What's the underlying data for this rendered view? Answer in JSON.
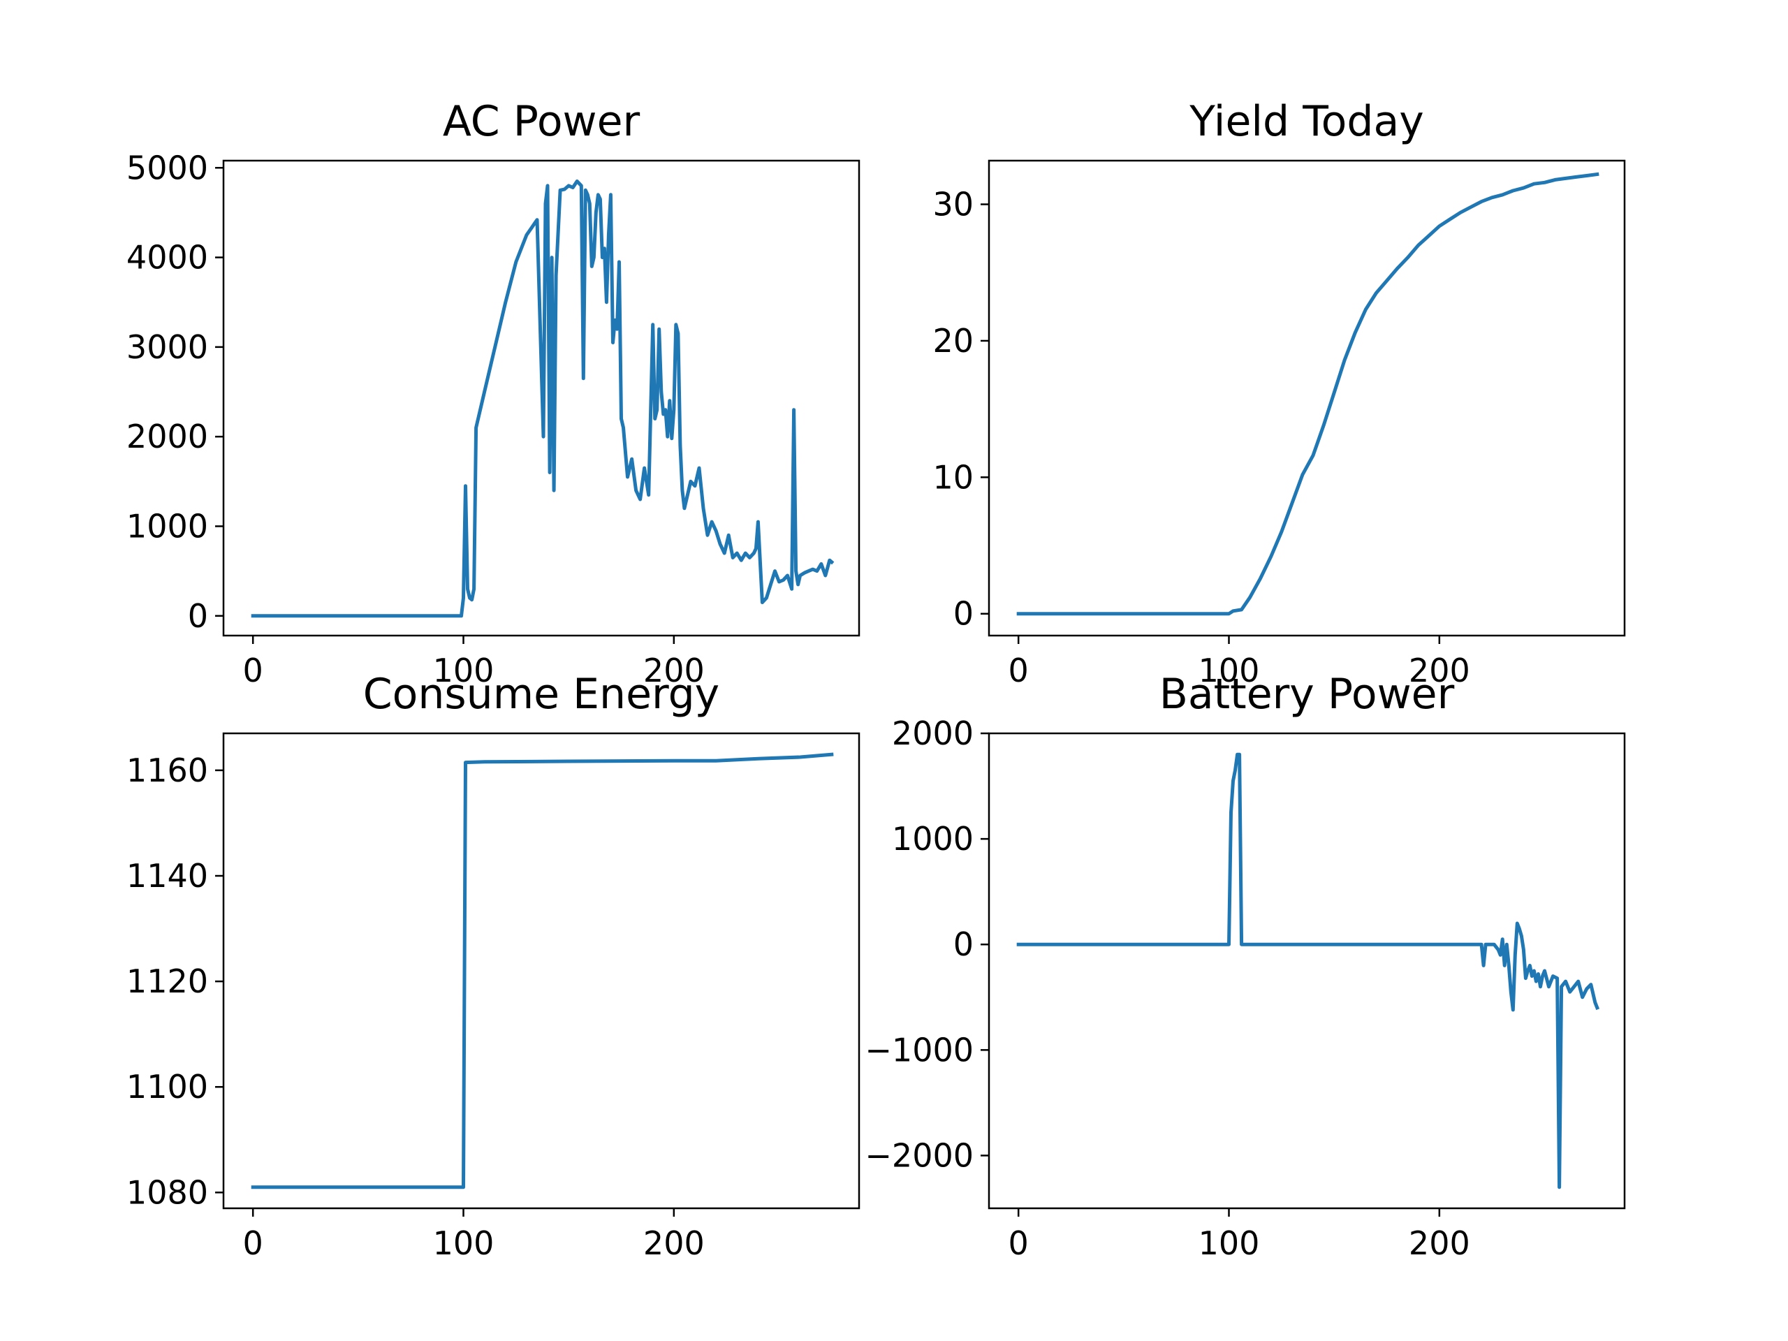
{
  "chart_data": [
    {
      "type": "line",
      "title": "AC Power",
      "xlabel": "",
      "ylabel": "",
      "xlim": [
        -14,
        288
      ],
      "ylim": [
        -220,
        5080
      ],
      "xticks": [
        0,
        100,
        200
      ],
      "yticks": [
        0,
        1000,
        2000,
        3000,
        4000,
        5000
      ],
      "xtick_labels": [
        "0",
        "100",
        "200"
      ],
      "ytick_labels": [
        "0",
        "1000",
        "2000",
        "3000",
        "4000",
        "5000"
      ],
      "grid": false,
      "color": "#1f77b4",
      "series": [
        {
          "x": [
            0,
            99,
            100,
            101,
            102,
            103,
            104,
            105,
            106,
            110,
            115,
            120,
            125,
            130,
            135,
            138,
            139,
            140,
            141,
            142,
            143,
            144,
            146,
            148,
            150,
            152,
            154,
            156,
            157,
            158,
            159,
            160,
            161,
            162,
            163,
            164,
            165,
            166,
            167,
            168,
            169,
            170,
            171,
            172,
            173,
            174,
            175,
            176,
            178,
            180,
            182,
            184,
            186,
            188,
            190,
            191,
            192,
            193,
            194,
            195,
            196,
            197,
            198,
            199,
            200,
            201,
            202,
            203,
            204,
            205,
            206,
            208,
            210,
            212,
            214,
            216,
            218,
            220,
            222,
            224,
            226,
            228,
            230,
            232,
            234,
            236,
            238,
            239,
            240,
            241,
            242,
            244,
            246,
            248,
            250,
            252,
            254,
            256,
            257,
            258,
            259,
            260,
            262,
            264,
            266,
            268,
            270,
            272,
            274,
            275
          ],
          "y": [
            0,
            0,
            200,
            1450,
            300,
            200,
            180,
            300,
            2100,
            2500,
            3000,
            3500,
            3950,
            4250,
            4420,
            2000,
            4600,
            4800,
            1600,
            4000,
            1400,
            3800,
            4750,
            4760,
            4800,
            4780,
            4850,
            4800,
            2650,
            4750,
            4700,
            4600,
            3900,
            4000,
            4500,
            4700,
            4650,
            4000,
            4100,
            3500,
            4250,
            4700,
            3050,
            3300,
            3200,
            3950,
            2200,
            2100,
            1550,
            1750,
            1400,
            1300,
            1650,
            1350,
            3250,
            2200,
            2300,
            3200,
            2500,
            2250,
            2300,
            2000,
            2400,
            1980,
            2300,
            3250,
            3150,
            1900,
            1400,
            1200,
            1300,
            1500,
            1450,
            1650,
            1200,
            900,
            1050,
            950,
            800,
            700,
            900,
            650,
            700,
            620,
            700,
            650,
            700,
            750,
            1050,
            600,
            150,
            200,
            350,
            500,
            380,
            400,
            450,
            300,
            2300,
            500,
            350,
            450,
            480,
            500,
            520,
            500,
            580,
            450,
            620,
            600
          ]
        }
      ]
    },
    {
      "type": "line",
      "title": "Yield Today",
      "xlabel": "",
      "ylabel": "",
      "xlim": [
        -14,
        288
      ],
      "ylim": [
        -1.6,
        33.2
      ],
      "xticks": [
        0,
        100,
        200
      ],
      "yticks": [
        0,
        10,
        20,
        30
      ],
      "xtick_labels": [
        "0",
        "100",
        "200"
      ],
      "ytick_labels": [
        "0",
        "10",
        "20",
        "30"
      ],
      "grid": false,
      "color": "#1f77b4",
      "series": [
        {
          "x": [
            0,
            100,
            102,
            106,
            110,
            115,
            120,
            125,
            130,
            135,
            140,
            145,
            150,
            155,
            160,
            165,
            170,
            175,
            180,
            185,
            190,
            195,
            200,
            205,
            210,
            215,
            220,
            225,
            230,
            235,
            240,
            245,
            250,
            255,
            260,
            265,
            270,
            275
          ],
          "y": [
            0,
            0,
            0.2,
            0.3,
            1.2,
            2.6,
            4.2,
            6.0,
            8.1,
            10.2,
            11.6,
            13.8,
            16.2,
            18.6,
            20.6,
            22.3,
            23.5,
            24.4,
            25.3,
            26.1,
            27.0,
            27.7,
            28.4,
            28.9,
            29.4,
            29.8,
            30.2,
            30.5,
            30.7,
            31.0,
            31.2,
            31.5,
            31.6,
            31.8,
            31.9,
            32.0,
            32.1,
            32.2
          ]
        }
      ]
    },
    {
      "type": "line",
      "title": "Consume Energy",
      "xlabel": "",
      "ylabel": "",
      "xlim": [
        -14,
        288
      ],
      "ylim": [
        1077,
        1167
      ],
      "xticks": [
        0,
        100,
        200
      ],
      "yticks": [
        1080,
        1100,
        1120,
        1140,
        1160
      ],
      "xtick_labels": [
        "0",
        "100",
        "200"
      ],
      "ytick_labels": [
        "1080",
        "1100",
        "1120",
        "1140",
        "1160"
      ],
      "grid": false,
      "color": "#1f77b4",
      "series": [
        {
          "x": [
            0,
            99,
            100,
            101,
            110,
            150,
            200,
            220,
            240,
            260,
            275
          ],
          "y": [
            1081,
            1081,
            1081,
            1161.5,
            1161.6,
            1161.7,
            1161.8,
            1161.8,
            1162.2,
            1162.5,
            1163
          ]
        }
      ]
    },
    {
      "type": "line",
      "title": "Battery Power",
      "xlabel": "",
      "ylabel": "",
      "xlim": [
        -14,
        288
      ],
      "ylim": [
        -2500,
        2000
      ],
      "xticks": [
        0,
        100,
        200
      ],
      "yticks": [
        -2000,
        -1000,
        0,
        1000,
        2000
      ],
      "xtick_labels": [
        "0",
        "100",
        "200"
      ],
      "ytick_labels": [
        "−2000",
        "−1000",
        "0",
        "1000",
        "2000"
      ],
      "grid": false,
      "color": "#1f77b4",
      "series": [
        {
          "x": [
            0,
            100,
            101,
            102,
            103,
            104,
            105,
            106,
            107,
            220,
            221,
            222,
            223,
            224,
            226,
            228,
            229,
            230,
            231,
            232,
            233,
            234,
            235,
            236,
            237,
            238,
            239,
            240,
            241,
            242,
            243,
            244,
            245,
            246,
            247,
            248,
            249,
            250,
            252,
            254,
            256,
            257,
            258,
            260,
            262,
            264,
            266,
            268,
            270,
            272,
            274,
            275
          ],
          "y": [
            0,
            0,
            1250,
            1550,
            1650,
            1800,
            1800,
            0,
            0,
            0,
            -200,
            0,
            0,
            0,
            0,
            -50,
            -100,
            50,
            -200,
            0,
            -200,
            -450,
            -620,
            -100,
            200,
            150,
            80,
            -50,
            -320,
            -250,
            -200,
            -300,
            -250,
            -350,
            -280,
            -400,
            -300,
            -250,
            -400,
            -300,
            -320,
            -2300,
            -400,
            -350,
            -450,
            -400,
            -350,
            -500,
            -420,
            -380,
            -550,
            -600
          ]
        }
      ]
    }
  ]
}
